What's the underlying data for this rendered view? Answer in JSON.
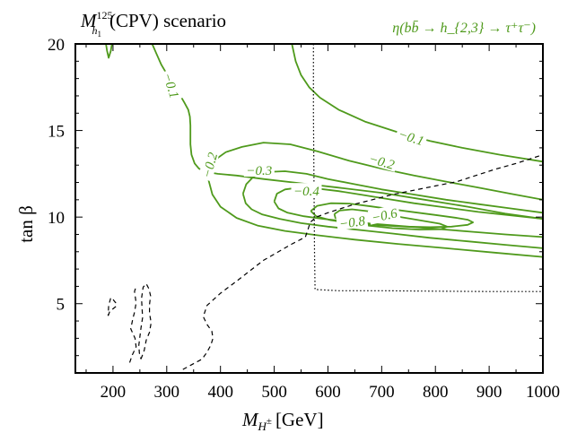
{
  "chart_data": {
    "type": "line",
    "title": "M_{h1}^{125}(CPV) scenario",
    "title_parts": {
      "base": "M",
      "sup": "125",
      "sub": "h",
      "subsub": "1",
      "rest": "(CPV) scenario"
    },
    "xlabel": "M_{H±} [GeV]",
    "xlabel_parts": {
      "base": "M",
      "sub": "H",
      "subsup": "±",
      "rest": "[GeV]"
    },
    "ylabel": "tan β",
    "xlim": [
      130,
      1000
    ],
    "ylim": [
      1,
      20
    ],
    "xticks": [
      200,
      300,
      400,
      500,
      600,
      700,
      800,
      900,
      1000
    ],
    "yticks": [
      5,
      10,
      15,
      20
    ],
    "xtick_labels": [
      "200",
      "300",
      "400",
      "500",
      "600",
      "700",
      "800",
      "900",
      "1000"
    ],
    "ytick_labels": [
      "5",
      "10",
      "15",
      "20"
    ],
    "grid": false,
    "legend_text": "η(bb̄ → h_{2,3} → τ⁺τ⁻)",
    "colors": {
      "contour": "#4f9a1c",
      "legend": "#4f9a1c",
      "dashed": "#000000",
      "dotted": "#000000"
    },
    "contours": [
      {
        "level": "−0.1",
        "segments": [
          [
            [
              187,
              20
            ],
            [
              189,
              19.6
            ],
            [
              192,
              19.2
            ],
            [
              196,
              19.6
            ],
            [
              198,
              20
            ]
          ],
          [
            [
              273,
              20
            ],
            [
              280,
              19.5
            ],
            [
              290,
              18.8
            ],
            [
              305,
              18.0
            ],
            [
              320,
              17.3
            ],
            [
              333,
              16.6
            ],
            [
              340,
              16.2
            ],
            [
              343,
              15.8
            ],
            [
              344,
              15.3
            ],
            [
              344,
              14.2
            ],
            [
              346,
              13.6
            ],
            [
              352,
              13.1
            ],
            [
              360,
              12.8
            ],
            [
              374,
              12.6
            ],
            [
              395,
              12.5
            ],
            [
              430,
              12.4
            ],
            [
              480,
              12.2
            ],
            [
              550,
              11.95
            ],
            [
              620,
              11.7
            ],
            [
              700,
              11.4
            ],
            [
              780,
              11.0
            ],
            [
              860,
              10.6
            ],
            [
              930,
              10.2
            ],
            [
              1000,
              9.9
            ]
          ],
          [
            [
              533,
              20
            ],
            [
              540,
              19.0
            ],
            [
              550,
              18.2
            ],
            [
              565,
              17.5
            ],
            [
              585,
              16.9
            ],
            [
              620,
              16.2
            ],
            [
              670,
              15.5
            ],
            [
              730,
              14.9
            ],
            [
              790,
              14.4
            ],
            [
              850,
              14.0
            ],
            [
              920,
              13.6
            ],
            [
              1000,
              13.2
            ]
          ]
        ]
      },
      {
        "level": "−0.2",
        "segments": [
          [
            [
              376,
              12.35
            ],
            [
              382,
              12.9
            ],
            [
              392,
              13.35
            ],
            [
              410,
              13.75
            ],
            [
              440,
              14.05
            ],
            [
              480,
              14.3
            ],
            [
              530,
              14.2
            ],
            [
              580,
              13.8
            ],
            [
              640,
              13.25
            ],
            [
              700,
              12.8
            ],
            [
              760,
              12.4
            ],
            [
              820,
              12.05
            ],
            [
              880,
              11.7
            ],
            [
              940,
              11.35
            ],
            [
              1000,
              11.0
            ]
          ],
          [
            [
              376,
              12.35
            ],
            [
              385,
              11.3
            ],
            [
              400,
              10.6
            ],
            [
              430,
              9.95
            ],
            [
              470,
              9.5
            ],
            [
              520,
              9.2
            ],
            [
              580,
              8.95
            ],
            [
              650,
              8.7
            ],
            [
              730,
              8.45
            ],
            [
              820,
              8.2
            ],
            [
              910,
              7.95
            ],
            [
              1000,
              7.7
            ]
          ]
        ]
      },
      {
        "level": "−0.3",
        "segments": [
          [
            [
              442,
              11.35
            ],
            [
              448,
              11.9
            ],
            [
              462,
              12.35
            ],
            [
              485,
              12.6
            ],
            [
              520,
              12.65
            ],
            [
              560,
              12.5
            ],
            [
              600,
              12.2
            ],
            [
              650,
              11.9
            ],
            [
              700,
              11.6
            ],
            [
              760,
              11.3
            ],
            [
              820,
              11.0
            ],
            [
              880,
              10.75
            ],
            [
              940,
              10.5
            ],
            [
              1000,
              10.25
            ]
          ],
          [
            [
              442,
              11.35
            ],
            [
              447,
              10.8
            ],
            [
              458,
              10.45
            ],
            [
              478,
              10.15
            ],
            [
              510,
              9.9
            ],
            [
              550,
              9.65
            ],
            [
              600,
              9.45
            ],
            [
              660,
              9.25
            ],
            [
              720,
              9.05
            ],
            [
              790,
              8.8
            ],
            [
              860,
              8.6
            ],
            [
              930,
              8.4
            ],
            [
              1000,
              8.2
            ]
          ]
        ]
      },
      {
        "level": "−0.4",
        "segments": [
          [
            [
              500,
              10.9
            ],
            [
              505,
              11.35
            ],
            [
              520,
              11.6
            ],
            [
              545,
              11.7
            ],
            [
              580,
              11.65
            ],
            [
              620,
              11.5
            ],
            [
              660,
              11.3
            ],
            [
              710,
              11.05
            ],
            [
              760,
              10.8
            ],
            [
              820,
              10.55
            ],
            [
              880,
              10.3
            ],
            [
              940,
              10.1
            ],
            [
              1000,
              9.9
            ]
          ],
          [
            [
              500,
              10.9
            ],
            [
              508,
              10.5
            ],
            [
              525,
              10.25
            ],
            [
              555,
              10.05
            ],
            [
              590,
              9.9
            ],
            [
              635,
              9.75
            ],
            [
              690,
              9.6
            ],
            [
              750,
              9.45
            ],
            [
              810,
              9.3
            ],
            [
              870,
              9.15
            ],
            [
              930,
              9.0
            ],
            [
              1000,
              8.85
            ]
          ]
        ]
      },
      {
        "level": "−0.6",
        "segments": [
          [
            [
              568,
              10.35
            ],
            [
              580,
              10.65
            ],
            [
              605,
              10.8
            ],
            [
              640,
              10.78
            ],
            [
              680,
              10.62
            ],
            [
              720,
              10.45
            ],
            [
              760,
              10.28
            ],
            [
              800,
              10.12
            ],
            [
              840,
              9.95
            ],
            [
              860,
              9.85
            ],
            [
              870,
              9.7
            ],
            [
              860,
              9.55
            ],
            [
              830,
              9.45
            ],
            [
              790,
              9.42
            ],
            [
              745,
              9.45
            ],
            [
              700,
              9.52
            ],
            [
              650,
              9.62
            ],
            [
              605,
              9.82
            ],
            [
              578,
              10.05
            ],
            [
              568,
              10.35
            ]
          ]
        ]
      },
      {
        "level": "−0.8",
        "segments": [
          [
            [
              612,
              10.18
            ],
            [
              622,
              10.38
            ],
            [
              645,
              10.45
            ],
            [
              680,
              10.32
            ],
            [
              720,
              10.08
            ],
            [
              765,
              9.85
            ],
            [
              808,
              9.62
            ],
            [
              822,
              9.45
            ],
            [
              810,
              9.3
            ],
            [
              770,
              9.28
            ],
            [
              720,
              9.36
            ],
            [
              670,
              9.52
            ],
            [
              635,
              9.72
            ],
            [
              614,
              9.95
            ],
            [
              612,
              10.18
            ]
          ]
        ]
      }
    ],
    "dashed_boundary": [
      [
        [
          330,
          1.2
        ],
        [
          348,
          1.5
        ],
        [
          366,
          1.8
        ],
        [
          375,
          2.2
        ],
        [
          382,
          2.6
        ],
        [
          386,
          3.0
        ],
        [
          384,
          3.4
        ],
        [
          375,
          3.8
        ],
        [
          368,
          4.25
        ],
        [
          375,
          4.9
        ],
        [
          400,
          5.6
        ],
        [
          430,
          6.3
        ],
        [
          455,
          6.9
        ],
        [
          480,
          7.5
        ],
        [
          505,
          7.95
        ],
        [
          530,
          8.4
        ],
        [
          558,
          8.85
        ],
        [
          563,
          9.3
        ],
        [
          567,
          9.7
        ],
        [
          578,
          10.0
        ],
        [
          600,
          10.25
        ],
        [
          625,
          10.5
        ],
        [
          650,
          10.75
        ],
        [
          680,
          10.98
        ],
        [
          720,
          11.3
        ],
        [
          760,
          11.55
        ],
        [
          800,
          11.8
        ],
        [
          840,
          12.05
        ],
        [
          870,
          12.35
        ],
        [
          910,
          12.75
        ],
        [
          950,
          13.1
        ],
        [
          1000,
          13.6
        ]
      ],
      [
        [
          191,
          4.3
        ],
        [
          194,
          4.55
        ],
        [
          200,
          4.7
        ],
        [
          206,
          4.85
        ],
        [
          205,
          5.05
        ],
        [
          200,
          5.25
        ],
        [
          196,
          5.35
        ],
        [
          192,
          4.9
        ],
        [
          191,
          4.3
        ]
      ],
      [
        [
          231,
          1.6
        ],
        [
          236,
          2.05
        ],
        [
          243,
          2.5
        ],
        [
          241,
          3.0
        ],
        [
          233,
          3.55
        ],
        [
          237,
          4.15
        ],
        [
          240,
          4.5
        ],
        [
          243,
          5.05
        ],
        [
          240,
          5.7
        ],
        [
          243,
          6.0
        ]
      ],
      [
        [
          252,
          1.8
        ],
        [
          258,
          2.3
        ],
        [
          262,
          2.9
        ],
        [
          268,
          3.35
        ],
        [
          271,
          3.9
        ],
        [
          268,
          4.45
        ],
        [
          268,
          4.95
        ],
        [
          270,
          5.45
        ],
        [
          267,
          5.85
        ],
        [
          262,
          6.15
        ],
        [
          256,
          5.95
        ],
        [
          253,
          5.3
        ],
        [
          254,
          4.75
        ],
        [
          255,
          4.2
        ],
        [
          252,
          3.6
        ],
        [
          250,
          3.1
        ],
        [
          248,
          2.6
        ],
        [
          249,
          2.15
        ],
        [
          252,
          1.8
        ]
      ]
    ],
    "dotted_boundary": [
      [
        573,
        20
      ],
      [
        573,
        16
      ],
      [
        574,
        12
      ],
      [
        575,
        8
      ],
      [
        576,
        5.82
      ],
      [
        620,
        5.75
      ],
      [
        700,
        5.75
      ],
      [
        800,
        5.72
      ],
      [
        900,
        5.7
      ],
      [
        1000,
        5.7
      ]
    ]
  }
}
